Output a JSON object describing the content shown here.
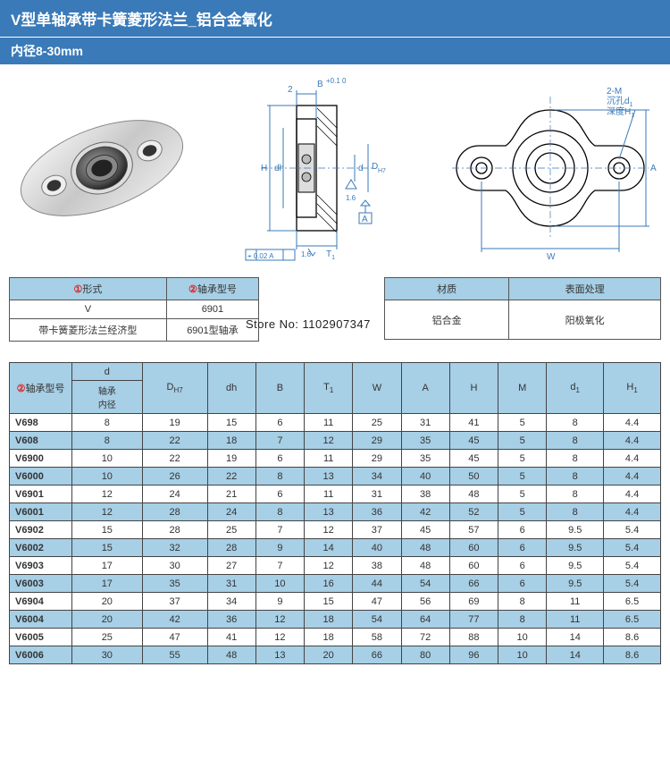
{
  "header": {
    "title": "V型单轴承带卡簧菱形法兰_铝合金氧化",
    "subtitle": "内径8-30mm"
  },
  "diagram_labels": {
    "B": "B",
    "B_tol": "+0.1\n 0",
    "B_lead": "2",
    "H": "H",
    "dh": "dh",
    "d": "d",
    "DH7_label": "D",
    "DH7_sub": "H7",
    "T1": "T",
    "T1_sub": "1",
    "gd": "⌖ 0.02 A",
    "datum": "A",
    "oneSix": "1.6",
    "oneSixTri": "1.6",
    "twoM": "2-M",
    "ck": "沉孔d",
    "ck_sub": "1",
    "depth": "深度H",
    "depth_sub": "1",
    "W": "W",
    "A_right": "A"
  },
  "info1": {
    "h1": "形式",
    "h1_mark": "①",
    "h2": "轴承型号",
    "h2_mark": "②",
    "r1c1": "V",
    "r1c2": "6901",
    "r2c1": "带卡簧菱形法兰经济型",
    "r2c2": "6901型轴承"
  },
  "info2": {
    "h1": "材质",
    "h2": "表面处理",
    "r1c1": "铝合金",
    "r1c2": "阳极氧化"
  },
  "store_text": "Store No: 1102907347",
  "spec": {
    "headers": {
      "model_mark": "②",
      "model": "轴承型号",
      "d_top": "d",
      "d_sub": "轴承\n内径",
      "D": "D",
      "D_sub": "H7",
      "dh": "dh",
      "B": "B",
      "T1": "T",
      "T1_sub": "1",
      "W": "W",
      "A": "A",
      "H": "H",
      "M": "M",
      "d1": "d",
      "d1_sub": "1",
      "H1": "H",
      "H1_sub": "1"
    },
    "rows": [
      {
        "model": "V698",
        "d": "8",
        "D": "19",
        "dh": "15",
        "B": "6",
        "T1": "11",
        "W": "25",
        "A": "31",
        "H": "41",
        "M": "5",
        "d1": "8",
        "H1": "4.4",
        "alt": false
      },
      {
        "model": "V608",
        "d": "8",
        "D": "22",
        "dh": "18",
        "B": "7",
        "T1": "12",
        "W": "29",
        "A": "35",
        "H": "45",
        "M": "5",
        "d1": "8",
        "H1": "4.4",
        "alt": true
      },
      {
        "model": "V6900",
        "d": "10",
        "D": "22",
        "dh": "19",
        "B": "6",
        "T1": "11",
        "W": "29",
        "A": "35",
        "H": "45",
        "M": "5",
        "d1": "8",
        "H1": "4.4",
        "alt": false
      },
      {
        "model": "V6000",
        "d": "10",
        "D": "26",
        "dh": "22",
        "B": "8",
        "T1": "13",
        "W": "34",
        "A": "40",
        "H": "50",
        "M": "5",
        "d1": "8",
        "H1": "4.4",
        "alt": true
      },
      {
        "model": "V6901",
        "d": "12",
        "D": "24",
        "dh": "21",
        "B": "6",
        "T1": "11",
        "W": "31",
        "A": "38",
        "H": "48",
        "M": "5",
        "d1": "8",
        "H1": "4.4",
        "alt": false
      },
      {
        "model": "V6001",
        "d": "12",
        "D": "28",
        "dh": "24",
        "B": "8",
        "T1": "13",
        "W": "36",
        "A": "42",
        "H": "52",
        "M": "5",
        "d1": "8",
        "H1": "4.4",
        "alt": true
      },
      {
        "model": "V6902",
        "d": "15",
        "D": "28",
        "dh": "25",
        "B": "7",
        "T1": "12",
        "W": "37",
        "A": "45",
        "H": "57",
        "M": "6",
        "d1": "9.5",
        "H1": "5.4",
        "alt": false
      },
      {
        "model": "V6002",
        "d": "15",
        "D": "32",
        "dh": "28",
        "B": "9",
        "T1": "14",
        "W": "40",
        "A": "48",
        "H": "60",
        "M": "6",
        "d1": "9.5",
        "H1": "5.4",
        "alt": true
      },
      {
        "model": "V6903",
        "d": "17",
        "D": "30",
        "dh": "27",
        "B": "7",
        "T1": "12",
        "W": "38",
        "A": "48",
        "H": "60",
        "M": "6",
        "d1": "9.5",
        "H1": "5.4",
        "alt": false
      },
      {
        "model": "V6003",
        "d": "17",
        "D": "35",
        "dh": "31",
        "B": "10",
        "T1": "16",
        "W": "44",
        "A": "54",
        "H": "66",
        "M": "6",
        "d1": "9.5",
        "H1": "5.4",
        "alt": true
      },
      {
        "model": "V6904",
        "d": "20",
        "D": "37",
        "dh": "34",
        "B": "9",
        "T1": "15",
        "W": "47",
        "A": "56",
        "H": "69",
        "M": "8",
        "d1": "11",
        "H1": "6.5",
        "alt": false
      },
      {
        "model": "V6004",
        "d": "20",
        "D": "42",
        "dh": "36",
        "B": "12",
        "T1": "18",
        "W": "54",
        "A": "64",
        "H": "77",
        "M": "8",
        "d1": "11",
        "H1": "6.5",
        "alt": true
      },
      {
        "model": "V6005",
        "d": "25",
        "D": "47",
        "dh": "41",
        "B": "12",
        "T1": "18",
        "W": "58",
        "A": "72",
        "H": "88",
        "M": "10",
        "d1": "14",
        "H1": "8.6",
        "alt": false
      },
      {
        "model": "V6006",
        "d": "30",
        "D": "55",
        "dh": "48",
        "B": "13",
        "T1": "20",
        "W": "66",
        "A": "80",
        "H": "96",
        "M": "10",
        "d1": "14",
        "H1": "8.6",
        "alt": true
      }
    ]
  },
  "colors": {
    "header_bg": "#a7cfe6",
    "title_bg": "#3a7ab8",
    "line_blue": "#3a7ab8",
    "red": "#d22"
  }
}
